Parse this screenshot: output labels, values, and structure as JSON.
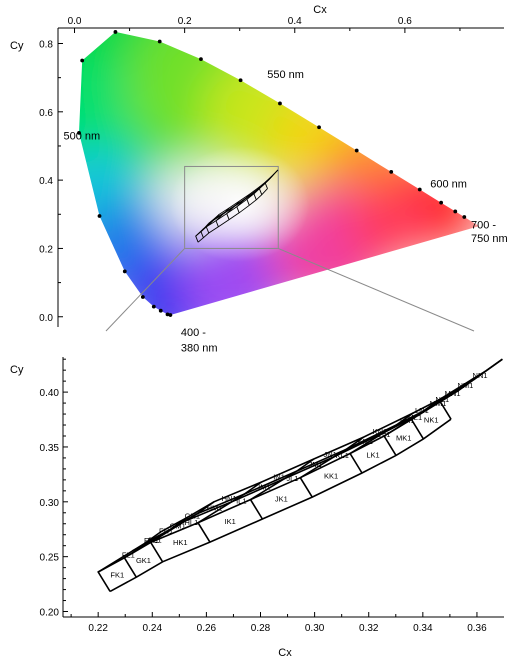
{
  "chart_data": [
    {
      "type": "scatter",
      "top_xlabel": "Cx",
      "ylabel": "Cy",
      "xlim": [
        -0.03,
        0.78
      ],
      "ylim": [
        -0.03,
        0.86
      ],
      "xticks": [
        "0.0",
        "0.2",
        "0.4",
        "0.6"
      ],
      "yticks": [
        "0.0",
        "0.2",
        "0.4",
        "0.6",
        "0.8"
      ],
      "spectral_locus": [
        [
          0.1741,
          0.005
        ],
        [
          0.1738,
          0.0049
        ],
        [
          0.1736,
          0.005
        ],
        [
          0.1733,
          0.0048
        ],
        [
          0.1726,
          0.0048
        ],
        [
          0.1714,
          0.0051
        ],
        [
          0.1689,
          0.0069
        ],
        [
          0.1644,
          0.0109
        ],
        [
          0.1566,
          0.0177
        ],
        [
          0.144,
          0.0297
        ],
        [
          0.1241,
          0.0578
        ],
        [
          0.0913,
          0.1327
        ],
        [
          0.0454,
          0.295
        ],
        [
          0.0082,
          0.5384
        ],
        [
          0.0139,
          0.7502
        ],
        [
          0.0743,
          0.8338
        ],
        [
          0.1547,
          0.8059
        ],
        [
          0.2296,
          0.7543
        ],
        [
          0.3016,
          0.6923
        ],
        [
          0.3731,
          0.6245
        ],
        [
          0.4441,
          0.5547
        ],
        [
          0.5125,
          0.4866
        ],
        [
          0.5752,
          0.4242
        ],
        [
          0.627,
          0.3725
        ],
        [
          0.6658,
          0.334
        ],
        [
          0.6915,
          0.3083
        ],
        [
          0.7079,
          0.292
        ],
        [
          0.7347,
          0.2653
        ]
      ],
      "locus_points": [
        [
          0.1741,
          0.005
        ],
        [
          0.1689,
          0.0069
        ],
        [
          0.1566,
          0.0177
        ],
        [
          0.144,
          0.0297
        ],
        [
          0.1241,
          0.0578
        ],
        [
          0.0913,
          0.1327
        ],
        [
          0.0454,
          0.295
        ],
        [
          0.0082,
          0.5384
        ],
        [
          0.0139,
          0.7502
        ],
        [
          0.0743,
          0.8338
        ],
        [
          0.1547,
          0.8059
        ],
        [
          0.2296,
          0.7543
        ],
        [
          0.3016,
          0.6923
        ],
        [
          0.3731,
          0.6245
        ],
        [
          0.4441,
          0.5547
        ],
        [
          0.5125,
          0.4866
        ],
        [
          0.5752,
          0.4242
        ],
        [
          0.627,
          0.3725
        ],
        [
          0.6658,
          0.334
        ],
        [
          0.6915,
          0.3083
        ],
        [
          0.7079,
          0.292
        ]
      ],
      "wavelength_labels": [
        {
          "text": "550 nm",
          "x": 0.35,
          "y": 0.71
        },
        {
          "text": "500 nm",
          "x": -0.02,
          "y": 0.53
        },
        {
          "text": "600 nm",
          "x": 0.646,
          "y": 0.39
        },
        {
          "text": "700 -",
          "x": 0.72,
          "y": 0.27
        },
        {
          "text": "750 nm",
          "x": 0.72,
          "y": 0.23
        },
        {
          "text": "400 -",
          "x": 0.215,
          "y": -0.045
        },
        {
          "text": "380 nm",
          "x": 0.215,
          "y": -0.09
        }
      ],
      "zoom_box": {
        "x": [
          0.2,
          0.37
        ],
        "y": [
          0.2,
          0.44
        ]
      }
    },
    {
      "type": "line",
      "xlabel": "Cx",
      "ylabel": "Cy",
      "xlim": [
        0.207,
        0.37
      ],
      "ylim": [
        0.195,
        0.432
      ],
      "xticks": [
        "0.22",
        "0.24",
        "0.26",
        "0.28",
        "0.30",
        "0.32",
        "0.34",
        "0.36"
      ],
      "yticks": [
        "0.20",
        "0.25",
        "0.30",
        "0.35",
        "0.40"
      ],
      "grid_columns": [
        "F",
        "G",
        "H",
        "I",
        "J",
        "K",
        "L",
        "M",
        "N"
      ],
      "grid_rows": [
        "K",
        "L",
        "M",
        "N"
      ],
      "grid_line_x_cx": [
        0.22,
        0.2297,
        0.2394,
        0.2569,
        0.2763,
        0.2947,
        0.3131,
        0.3257,
        0.3358,
        0.346
      ],
      "grid_line_x_cy": [
        0.236,
        0.249,
        0.263,
        0.281,
        0.302,
        0.322,
        0.344,
        0.36,
        0.375,
        0.393
      ],
      "grid_line_y_dx": [
        0.0,
        0.0126,
        0.0171,
        0.0234
      ],
      "grid_line_y_dy": [
        0.0,
        0.0192,
        0.026,
        0.037
      ],
      "grid_bottom_dx": 0.0044,
      "grid_bottom_dy": -0.0177,
      "cell_labels": [
        "FN1",
        "GN1",
        "HN1",
        "IN1",
        "JN1",
        "KN1",
        "LN1",
        "MN1",
        "NN1",
        "FM1",
        "GM1",
        "HM1",
        "IM1",
        "JM1",
        "KM1",
        "LM1",
        "MM1",
        "NM1",
        "FL1",
        "GL1",
        "HL1",
        "IL1",
        "JL1",
        "KL1",
        "LL1",
        "ML1",
        "NL1",
        "FK1",
        "GK1",
        "HK1",
        "IK1",
        "JK1",
        "KK1",
        "LK1",
        "MK1",
        "NK1"
      ]
    }
  ]
}
